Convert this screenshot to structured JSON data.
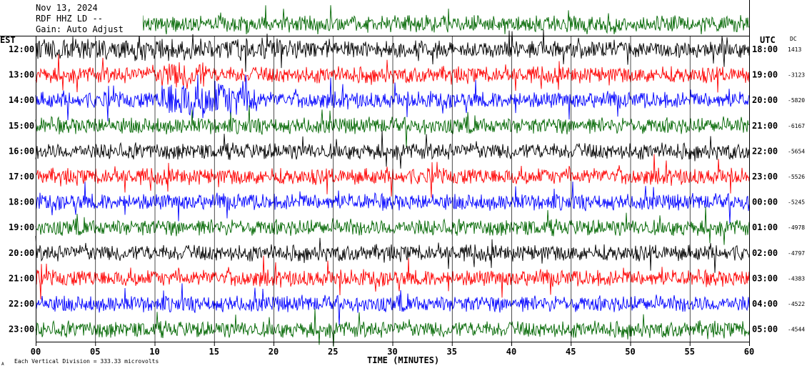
{
  "header": {
    "date": "Nov 13, 2024",
    "station": "RDF HHZ LD --",
    "line3": "Gain: Auto Adjust"
  },
  "footer": {
    "scale_note": "Each Vertical Division =  333.33 microvolts",
    "corner_mark": "A"
  },
  "colors": [
    "#000000",
    "#ff0000",
    "#0000ff",
    "#006600"
  ],
  "chart_data": {
    "type": "line",
    "title": "",
    "xlabel": "TIME (MINUTES)",
    "left_axis_label": "EST",
    "right_axis_label": "UTC",
    "dc_label": "DC",
    "xlim": [
      0,
      60
    ],
    "x_ticks": [
      0,
      5,
      10,
      15,
      20,
      25,
      30,
      35,
      40,
      45,
      50,
      55,
      60
    ],
    "x_tick_labels": [
      "00",
      "05",
      "10",
      "15",
      "20",
      "25",
      "30",
      "35",
      "40",
      "45",
      "50",
      "55",
      "60"
    ],
    "grid": "vertical lines every 5 minutes",
    "rows": [
      {
        "est": "12:00",
        "utc": "18:00",
        "dc": "1413"
      },
      {
        "est": "13:00",
        "utc": "19:00",
        "dc": "-3123"
      },
      {
        "est": "14:00",
        "utc": "20:00",
        "dc": "-5820"
      },
      {
        "est": "15:00",
        "utc": "21:00",
        "dc": "-6167"
      },
      {
        "est": "16:00",
        "utc": "22:00",
        "dc": "-5654"
      },
      {
        "est": "17:00",
        "utc": "23:00",
        "dc": "-5526"
      },
      {
        "est": "18:00",
        "utc": "00:00",
        "dc": "-5245"
      },
      {
        "est": "19:00",
        "utc": "01:00",
        "dc": "-4978"
      },
      {
        "est": "20:00",
        "utc": "02:00",
        "dc": "-4797"
      },
      {
        "est": "21:00",
        "utc": "03:00",
        "dc": "-4383"
      },
      {
        "est": "22:00",
        "utc": "04:00",
        "dc": "-4522"
      },
      {
        "est": "23:00",
        "utc": "05:00",
        "dc": "-4544"
      }
    ]
  }
}
